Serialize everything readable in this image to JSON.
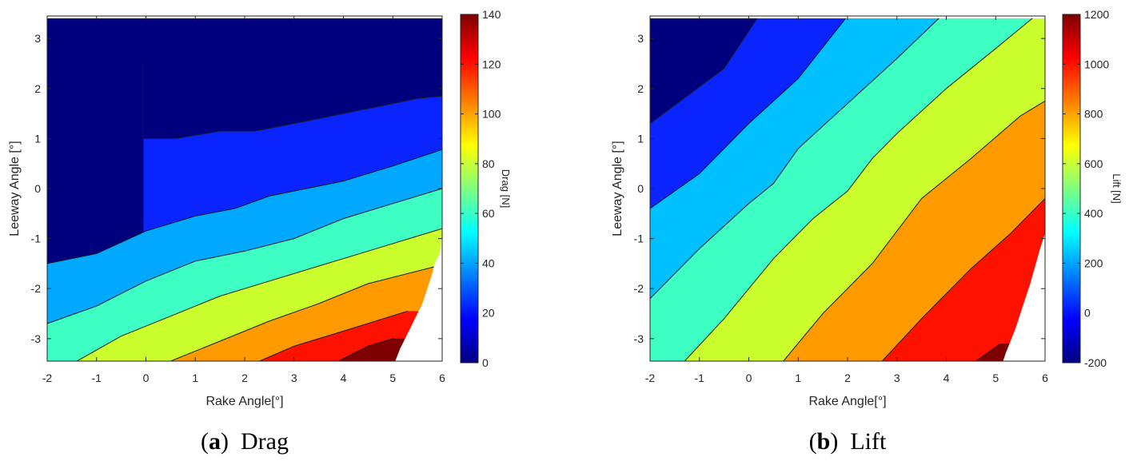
{
  "chart_data": [
    {
      "type": "filled-contour",
      "caption": {
        "letter": "a",
        "text": "Drag"
      },
      "xlabel": "Rake Angle[°]",
      "ylabel": "Leeway Angle [°]",
      "colorbar_label": "Drag [N]",
      "xlim": [
        -2,
        6
      ],
      "ylim": [
        -3.45,
        3.45
      ],
      "xticks": [
        "-2",
        "-1",
        "0",
        "1",
        "2",
        "3",
        "4",
        "5",
        "6"
      ],
      "yticks": [
        "-3",
        "-2",
        "-1",
        "0",
        "1",
        "2",
        "3"
      ],
      "colorbar_range": [
        0,
        140
      ],
      "colorbar_ticks": [
        "0",
        "20",
        "40",
        "60",
        "80",
        "100",
        "120",
        "140"
      ],
      "levels": [
        0,
        10,
        20,
        40,
        60,
        80,
        100,
        120,
        140
      ],
      "level_colors": [
        "#00007f",
        "#0a24ff",
        "#00a8ff",
        "#3dffc4",
        "#caff2d",
        "#ff9a00",
        "#ff1100",
        "#7f0000"
      ],
      "contours": [
        {
          "level": 10,
          "points": [
            [
              -0.05,
              2.5
            ],
            [
              -0.05,
              1.0
            ],
            [
              0.6,
              1.0
            ],
            [
              1.5,
              1.15
            ],
            [
              2.2,
              1.15
            ],
            [
              3.0,
              1.3
            ],
            [
              4.0,
              1.5
            ],
            [
              5.5,
              1.8
            ],
            [
              6,
              1.85
            ]
          ]
        },
        {
          "level": 20,
          "points": [
            [
              -2,
              -1.5
            ],
            [
              -1.0,
              -1.3
            ],
            [
              0,
              -0.85
            ],
            [
              1.0,
              -0.55
            ],
            [
              1.8,
              -0.4
            ],
            [
              2.5,
              -0.15
            ],
            [
              4.0,
              0.15
            ],
            [
              5.0,
              0.45
            ],
            [
              6,
              0.78
            ]
          ]
        },
        {
          "level": 40,
          "points": [
            [
              -2,
              -2.7
            ],
            [
              -1.0,
              -2.35
            ],
            [
              0,
              -1.85
            ],
            [
              1.0,
              -1.45
            ],
            [
              2.0,
              -1.25
            ],
            [
              3.0,
              -1.0
            ],
            [
              4.0,
              -0.6
            ],
            [
              5.0,
              -0.3
            ],
            [
              6,
              0.0
            ]
          ]
        },
        {
          "level": 60,
          "points": [
            [
              -1.4,
              -3.45
            ],
            [
              -0.5,
              -2.95
            ],
            [
              0.5,
              -2.55
            ],
            [
              1.5,
              -2.15
            ],
            [
              2.5,
              -1.85
            ],
            [
              3.5,
              -1.55
            ],
            [
              4.5,
              -1.25
            ],
            [
              6,
              -0.8
            ]
          ]
        },
        {
          "level": 80,
          "points": [
            [
              0.5,
              -3.45
            ],
            [
              1.5,
              -3.05
            ],
            [
              2.5,
              -2.65
            ],
            [
              3.5,
              -2.3
            ],
            [
              4.5,
              -1.9
            ],
            [
              5.9,
              -1.55
            ]
          ]
        },
        {
          "level": 100,
          "points": [
            [
              2.3,
              -3.45
            ],
            [
              3.0,
              -3.15
            ],
            [
              4.0,
              -2.85
            ],
            [
              5.3,
              -2.45
            ]
          ]
        },
        {
          "level": 120,
          "points": [
            [
              3.9,
              -3.45
            ],
            [
              4.5,
              -3.15
            ],
            [
              5.0,
              -3.0
            ]
          ]
        }
      ],
      "blank_region": [
        [
          6,
          -0.9
        ],
        [
          5.95,
          -1.3
        ],
        [
          5.85,
          -1.5
        ],
        [
          5.8,
          -1.7
        ],
        [
          5.7,
          -2.0
        ],
        [
          5.6,
          -2.3
        ],
        [
          5.45,
          -2.6
        ],
        [
          5.35,
          -2.8
        ],
        [
          5.25,
          -3.0
        ],
        [
          5.15,
          -3.2
        ],
        [
          5.05,
          -3.45
        ],
        [
          6,
          -3.45
        ]
      ]
    },
    {
      "type": "filled-contour",
      "caption": {
        "letter": "b",
        "text": "Lift"
      },
      "xlabel": "Rake Angle[°]",
      "ylabel": "Leeway Angle [°]",
      "colorbar_label": "Lift [N]",
      "xlim": [
        -2,
        6
      ],
      "ylim": [
        -3.45,
        3.45
      ],
      "xticks": [
        "-2",
        "-1",
        "0",
        "1",
        "2",
        "3",
        "4",
        "5",
        "6"
      ],
      "yticks": [
        "-3",
        "-2",
        "-1",
        "0",
        "1",
        "2",
        "3"
      ],
      "colorbar_range": [
        -200,
        1200
      ],
      "colorbar_ticks": [
        "-200",
        "0",
        "200",
        "400",
        "600",
        "800",
        "1000",
        "1200"
      ],
      "levels": [
        -200,
        0,
        200,
        400,
        600,
        800,
        1000,
        1200
      ],
      "level_colors": [
        "#00007f",
        "#0a24ff",
        "#00bfff",
        "#3dffc4",
        "#caff2d",
        "#ff9a00",
        "#ff1100",
        "#7f0000"
      ],
      "contours": [
        {
          "level": 0,
          "points": [
            [
              -2,
              1.3
            ],
            [
              -0.5,
              2.4
            ],
            [
              0.2,
              3.45
            ]
          ]
        },
        {
          "level": 200,
          "points": [
            [
              -2,
              -0.4
            ],
            [
              -1.0,
              0.3
            ],
            [
              0,
              1.3
            ],
            [
              1.0,
              2.2
            ],
            [
              2.0,
              3.45
            ]
          ]
        },
        {
          "level": 400,
          "points": [
            [
              -2,
              -2.2
            ],
            [
              -1.0,
              -1.2
            ],
            [
              0,
              -0.3
            ],
            [
              0.5,
              0.1
            ],
            [
              1.0,
              0.8
            ],
            [
              2.0,
              1.7
            ],
            [
              3.0,
              2.6
            ],
            [
              3.9,
              3.45
            ]
          ]
        },
        {
          "level": 600,
          "points": [
            [
              -1.3,
              -3.45
            ],
            [
              -0.5,
              -2.6
            ],
            [
              0.5,
              -1.4
            ],
            [
              1.3,
              -0.6
            ],
            [
              2.0,
              -0.05
            ],
            [
              2.5,
              0.6
            ],
            [
              3.0,
              1.1
            ],
            [
              4.0,
              2.0
            ],
            [
              5.0,
              2.8
            ],
            [
              5.8,
              3.45
            ]
          ]
        },
        {
          "level": 800,
          "points": [
            [
              0.7,
              -3.45
            ],
            [
              1.5,
              -2.5
            ],
            [
              2.5,
              -1.5
            ],
            [
              3.5,
              -0.2
            ],
            [
              4.5,
              0.6
            ],
            [
              5.5,
              1.45
            ],
            [
              6,
              1.75
            ]
          ]
        },
        {
          "level": 1000,
          "points": [
            [
              2.7,
              -3.45
            ],
            [
              3.5,
              -2.6
            ],
            [
              4.5,
              -1.6
            ],
            [
              5.3,
              -0.9
            ],
            [
              6,
              -0.2
            ]
          ]
        },
        {
          "level": 1200,
          "points": [
            [
              4.6,
              -3.45
            ],
            [
              5.1,
              -3.1
            ]
          ]
        }
      ],
      "blank_region": [
        [
          6,
          -0.9
        ],
        [
          5.9,
          -1.2
        ],
        [
          5.8,
          -1.55
        ],
        [
          5.7,
          -1.9
        ],
        [
          5.6,
          -2.2
        ],
        [
          5.5,
          -2.5
        ],
        [
          5.4,
          -2.8
        ],
        [
          5.3,
          -3.05
        ],
        [
          5.2,
          -3.3
        ],
        [
          5.15,
          -3.45
        ],
        [
          6,
          -3.45
        ]
      ]
    }
  ]
}
